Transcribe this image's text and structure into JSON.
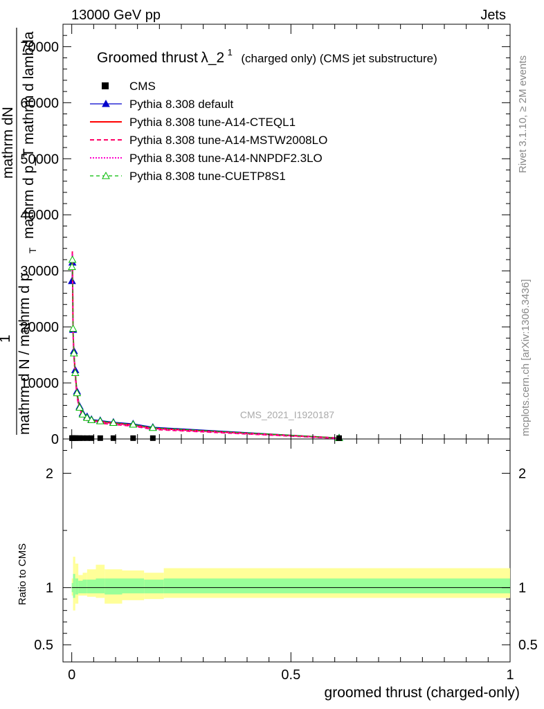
{
  "header": {
    "left": "13000 GeV pp",
    "right": "Jets"
  },
  "side_labels": {
    "rivet": "Rivet 3.1.10, ≥ 2M events",
    "mcplots": "mcplots.cern.ch [arXiv:1306.3436]"
  },
  "watermark": "CMS_2021_I1920187",
  "title": {
    "main": "Groomed thrust",
    "lambda": "λ_2",
    "sup": "1",
    "suffix": "(charged only) (CMS jet substructure)"
  },
  "colors": {
    "data": "#000000",
    "default": "#0000cc",
    "cteql1": "#ff0000",
    "mstw": "#ff0066",
    "nnpdf": "#ff00cc",
    "cuetp8s1": "#00bb00",
    "band_outer": "#ffff99",
    "band_inner": "#99ff99"
  },
  "chart_data": [
    {
      "type": "line",
      "panel": "main",
      "ylabel_parts": {
        "numer_left": "1",
        "numer_right": "mathrm d^{}N",
        "denom": "mathrm d N / mathrm d p_T mathrm d p_T mathrm d lambda"
      },
      "ylabel_display": {
        "one": "1",
        "dN": "mathrm dN",
        "mid": "mathrm d p_T mathrm d lambda",
        "bottom": "mathrm d N / mathrm d p",
        "sub": "T"
      },
      "xlim": [
        -0.02,
        1.0
      ],
      "ylim": [
        0,
        74000
      ],
      "yticks": [
        0,
        10000,
        20000,
        30000,
        40000,
        50000,
        60000,
        70000
      ],
      "ytick_labels": [
        "0",
        "10000",
        "20000",
        "30000",
        "40000",
        "50000",
        "60000",
        "70000"
      ],
      "legend_position": "top-left",
      "series": [
        {
          "name": "CMS",
          "style": "points",
          "x": [
            0.0005,
            0.0015,
            0.003,
            0.005,
            0.008,
            0.012,
            0.018,
            0.025,
            0.035,
            0.045,
            0.065,
            0.095,
            0.14,
            0.185,
            0.61
          ],
          "y": [
            150,
            150,
            150,
            150,
            150,
            150,
            150,
            150,
            150,
            150,
            150,
            150,
            150,
            150,
            150
          ]
        },
        {
          "name": "Pythia 8.308 default",
          "style": "line-triangle",
          "x": [
            0.0005,
            0.0015,
            0.003,
            0.005,
            0.008,
            0.012,
            0.018,
            0.025,
            0.035,
            0.045,
            0.065,
            0.095,
            0.14,
            0.185,
            0.61
          ],
          "y": [
            28200,
            31500,
            19500,
            15700,
            12300,
            8500,
            5800,
            4600,
            4000,
            3500,
            3300,
            3000,
            2700,
            2100,
            200
          ]
        },
        {
          "name": "Pythia 8.308 tune-A14-CTEQL1",
          "style": "solid",
          "x": [
            0.0005,
            0.0015,
            0.003,
            0.005,
            0.008,
            0.012,
            0.018,
            0.025,
            0.035,
            0.045,
            0.065,
            0.095,
            0.14,
            0.185,
            0.61
          ],
          "y": [
            30500,
            32500,
            19000,
            15200,
            11800,
            8000,
            5500,
            4300,
            3700,
            3300,
            3100,
            2800,
            2500,
            1900,
            150
          ]
        },
        {
          "name": "Pythia 8.308 tune-A14-MSTW2008LO",
          "style": "dashed",
          "x": [
            0.0005,
            0.0015,
            0.003,
            0.005,
            0.008,
            0.012,
            0.018,
            0.025,
            0.035,
            0.045,
            0.065,
            0.095,
            0.14,
            0.185,
            0.61
          ],
          "y": [
            31500,
            33500,
            18800,
            14800,
            11300,
            7500,
            5100,
            3900,
            3300,
            3000,
            2800,
            2600,
            2300,
            1700,
            100
          ]
        },
        {
          "name": "Pythia 8.308 tune-A14-NNPDF2.3LO",
          "style": "dotted",
          "x": [
            0.0005,
            0.0015,
            0.003,
            0.005,
            0.008,
            0.012,
            0.018,
            0.025,
            0.035,
            0.045,
            0.065,
            0.095,
            0.14,
            0.185,
            0.61
          ],
          "y": [
            31000,
            33000,
            19000,
            15000,
            11600,
            7800,
            5300,
            4100,
            3500,
            3200,
            3000,
            2700,
            2400,
            1800,
            120
          ]
        },
        {
          "name": "Pythia 8.308 tune-CUETP8S1",
          "style": "dashed-open-triangle",
          "x": [
            0.0005,
            0.0015,
            0.003,
            0.005,
            0.008,
            0.012,
            0.018,
            0.025,
            0.035,
            0.045,
            0.065,
            0.095,
            0.14,
            0.185,
            0.61
          ],
          "y": [
            30700,
            32000,
            19700,
            15300,
            11800,
            8200,
            5600,
            4400,
            3800,
            3400,
            3200,
            2900,
            2600,
            2000,
            180
          ]
        }
      ]
    },
    {
      "type": "area",
      "panel": "ratio",
      "ylabel": "Ratio to CMS",
      "xlabel": "groomed thrust (charged-only)",
      "xlim": [
        -0.02,
        1.0
      ],
      "ylim": [
        0.35,
        2.3
      ],
      "yticks": [
        0.5,
        1,
        2
      ],
      "ytick_labels": [
        "0.5",
        "1",
        "2"
      ],
      "xticks": [
        0,
        0.5,
        1
      ],
      "xtick_labels": [
        "0",
        "0.5",
        "1"
      ],
      "bands": {
        "edges": [
          0.0,
          0.003,
          0.008,
          0.015,
          0.025,
          0.035,
          0.055,
          0.075,
          0.115,
          0.165,
          0.21,
          1.0
        ],
        "outer_low": [
          0.93,
          0.8,
          0.86,
          0.93,
          0.93,
          0.92,
          0.91,
          0.86,
          0.89,
          0.9,
          0.91
        ],
        "outer_high": [
          1.08,
          1.27,
          1.21,
          1.11,
          1.13,
          1.16,
          1.2,
          1.16,
          1.15,
          1.13,
          1.17
        ],
        "inner_low": [
          0.96,
          0.91,
          0.94,
          0.95,
          0.95,
          0.95,
          0.95,
          0.94,
          0.95,
          0.95,
          0.95
        ],
        "inner_high": [
          1.04,
          1.12,
          1.08,
          1.06,
          1.07,
          1.07,
          1.08,
          1.08,
          1.08,
          1.07,
          1.08
        ]
      },
      "reference_line": 1
    }
  ]
}
